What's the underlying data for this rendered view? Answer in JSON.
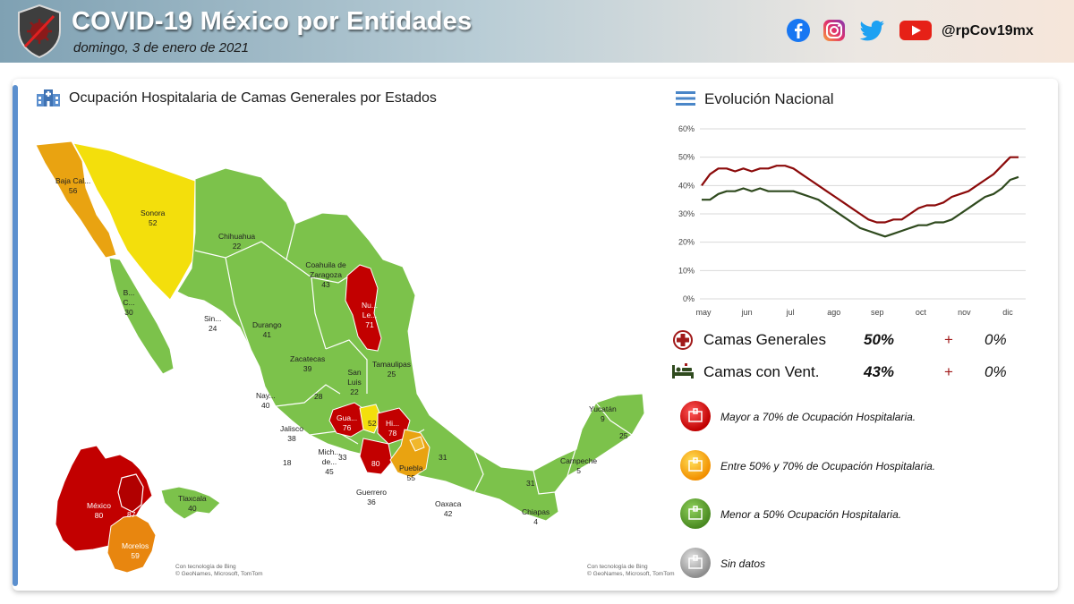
{
  "header": {
    "title": "COVID-19 México por Entidades",
    "date": "domingo, 3 de enero de 2021",
    "handle": "@rpCov19mx",
    "social_icons": [
      "facebook-icon",
      "instagram-icon",
      "twitter-icon",
      "youtube-icon"
    ]
  },
  "map": {
    "title": "Ocupación Hospitalaria de Camas Generales por Estados",
    "states": [
      {
        "name": "Baja Cal...",
        "value": "56"
      },
      {
        "name": "Sonora",
        "value": "52"
      },
      {
        "name": "Chihuahua",
        "value": "22"
      },
      {
        "name": "Coahuila de Zaragoza",
        "value": "43"
      },
      {
        "name": "Nu... Le...",
        "value": "71"
      },
      {
        "name": "B... C...",
        "value": "30"
      },
      {
        "name": "Sin...",
        "value": "24"
      },
      {
        "name": "Durango",
        "value": "41"
      },
      {
        "name": "Tamaulipas",
        "value": "25"
      },
      {
        "name": "Zacatecas",
        "value": "39"
      },
      {
        "name": "San Luis",
        "value": "22"
      },
      {
        "name": "Nay...",
        "value": "40"
      },
      {
        "name": "",
        "value": "28"
      },
      {
        "name": "Gua...",
        "value": "76"
      },
      {
        "name": "",
        "value": "52"
      },
      {
        "name": "Hi...",
        "value": "78"
      },
      {
        "name": "Jalisco",
        "value": "38"
      },
      {
        "name": "",
        "value": "33"
      },
      {
        "name": "",
        "value": "18"
      },
      {
        "name": "Mich... de...",
        "value": "45"
      },
      {
        "name": "",
        "value": "80"
      },
      {
        "name": "Puebla",
        "value": "55"
      },
      {
        "name": "",
        "value": "31"
      },
      {
        "name": "Guerrero",
        "value": "36"
      },
      {
        "name": "Oaxaca",
        "value": "42"
      },
      {
        "name": "Yucatán",
        "value": "9"
      },
      {
        "name": "",
        "value": "25"
      },
      {
        "name": "Campeche",
        "value": "5"
      },
      {
        "name": "",
        "value": "31"
      },
      {
        "name": "Chiapas",
        "value": "4"
      }
    ],
    "inset": [
      {
        "name": "México",
        "value": "80"
      },
      {
        "name": "",
        "value": "87"
      },
      {
        "name": "Morelos",
        "value": "59"
      },
      {
        "name": "Tlaxcala",
        "value": "40"
      }
    ],
    "credit_1": "Con tecnología de Bing",
    "credit_2": "© GeoNames, Microsoft, TomTom"
  },
  "evolution": {
    "title": "Evolución Nacional",
    "rows": [
      {
        "label": "Camas Generales",
        "value": "50%",
        "sign": "+",
        "delta": "0%",
        "icon": "medical-cross-icon"
      },
      {
        "label": "Camas con Vent.",
        "value": "43%",
        "sign": "+",
        "delta": "0%",
        "icon": "ventilator-bed-icon"
      }
    ]
  },
  "levels": [
    {
      "text": "Mayor a 70% de Ocupación Hospitalaria.",
      "color": "#c00000"
    },
    {
      "text": "Entre 50% y 70% de Ocupación Hospitalaria.",
      "color": "#f2a000"
    },
    {
      "text": "Menor a 50% Ocupación Hospitalaria.",
      "color": "#5a9b2d"
    },
    {
      "text": "Sin datos",
      "color": "#9a9a9a"
    }
  ],
  "chart_data": {
    "type": "line",
    "x_ticks": [
      "may",
      "jun",
      "jul",
      "ago",
      "sep",
      "oct",
      "nov",
      "dic"
    ],
    "y_ticks": [
      "0%",
      "10%",
      "20%",
      "30%",
      "40%",
      "50%",
      "60%"
    ],
    "ylim": [
      0,
      60
    ],
    "grid": true,
    "series": [
      {
        "name": "Camas Generales",
        "color": "#8b0a0a",
        "values": [
          40,
          44,
          46,
          46,
          45,
          46,
          45,
          46,
          46,
          47,
          47,
          46,
          44,
          42,
          40,
          38,
          36,
          34,
          32,
          30,
          28,
          27,
          27,
          28,
          28,
          30,
          32,
          33,
          33,
          34,
          36,
          37,
          38,
          40,
          42,
          44,
          47,
          50,
          50
        ]
      },
      {
        "name": "Camas con Vent.",
        "color": "#2f4a1e",
        "values": [
          35,
          35,
          37,
          38,
          38,
          39,
          38,
          39,
          38,
          38,
          38,
          38,
          37,
          36,
          35,
          33,
          31,
          29,
          27,
          25,
          24,
          23,
          22,
          23,
          24,
          25,
          26,
          26,
          27,
          27,
          28,
          30,
          32,
          34,
          36,
          37,
          39,
          42,
          43
        ]
      }
    ]
  }
}
